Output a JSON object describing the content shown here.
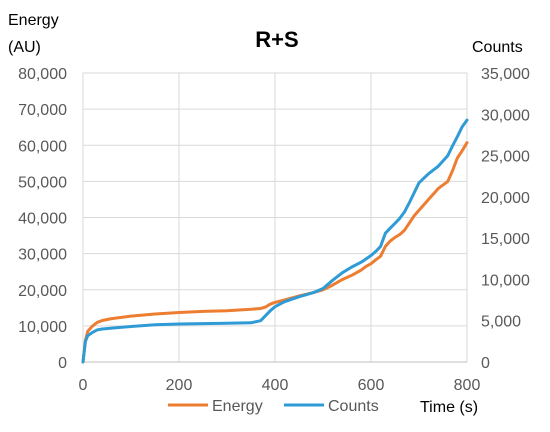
{
  "chart_data": {
    "type": "line",
    "title": "R+S",
    "xlabel": "Time (s)",
    "ylabel_left": "Energy\n(AU)",
    "ylabel_right": "Counts",
    "xlim": [
      0,
      800
    ],
    "ylim_left": [
      0,
      80000
    ],
    "ylim_right": [
      0,
      35000
    ],
    "x_ticks": [
      "0",
      "200",
      "400",
      "600",
      "800"
    ],
    "y_left_ticks": [
      "0",
      "10,000",
      "20,000",
      "30,000",
      "40,000",
      "50,000",
      "60,000",
      "70,000",
      "80,000"
    ],
    "y_right_ticks": [
      "0",
      "5,000",
      "10,000",
      "15,000",
      "20,000",
      "25,000",
      "30,000",
      "35,000"
    ],
    "grid": true,
    "legend_position": "bottom",
    "series": [
      {
        "name": "Energy",
        "axis": "left",
        "color": "#ED7D31",
        "x": [
          0,
          5,
          10,
          20,
          30,
          40,
          60,
          100,
          150,
          200,
          250,
          300,
          350,
          370,
          380,
          390,
          400,
          420,
          450,
          480,
          500,
          520,
          540,
          560,
          580,
          590,
          600,
          610,
          620,
          630,
          640,
          650,
          660,
          670,
          680,
          690,
          700,
          720,
          740,
          760,
          770,
          780,
          790,
          800
        ],
        "y": [
          0,
          6000,
          8500,
          10000,
          11000,
          11500,
          12000,
          12700,
          13300,
          13700,
          14000,
          14200,
          14600,
          14800,
          15200,
          16000,
          16500,
          17200,
          18300,
          19200,
          20000,
          21300,
          22800,
          24000,
          25500,
          26500,
          27200,
          28300,
          29300,
          32000,
          33500,
          34500,
          35300,
          36500,
          38500,
          40500,
          42000,
          45000,
          48000,
          50000,
          53000,
          56500,
          58500,
          60700
        ]
      },
      {
        "name": "Counts",
        "axis": "right",
        "color": "#2E9BD6",
        "x": [
          0,
          5,
          10,
          20,
          30,
          40,
          60,
          100,
          150,
          200,
          250,
          300,
          350,
          370,
          380,
          390,
          400,
          420,
          450,
          480,
          500,
          520,
          540,
          560,
          580,
          600,
          610,
          620,
          630,
          640,
          650,
          660,
          670,
          680,
          690,
          700,
          720,
          740,
          760,
          770,
          780,
          790,
          800
        ],
        "y": [
          0,
          2500,
          3200,
          3600,
          3900,
          4000,
          4100,
          4300,
          4500,
          4600,
          4650,
          4700,
          4750,
          5000,
          5600,
          6200,
          6700,
          7300,
          7900,
          8400,
          8900,
          9900,
          10800,
          11500,
          12100,
          12900,
          13400,
          14000,
          15600,
          16200,
          16800,
          17400,
          18200,
          19300,
          20500,
          21700,
          22800,
          23700,
          25000,
          26200,
          27300,
          28500,
          29300
        ]
      }
    ]
  }
}
